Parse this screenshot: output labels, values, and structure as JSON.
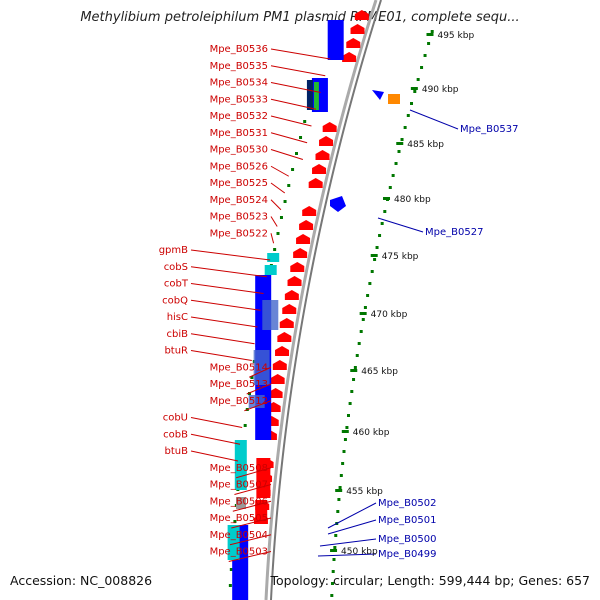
{
  "title": "Methylibium petroleiphilum PM1 plasmid RPME01, complete sequ...",
  "footer": {
    "accession": "Accession: NC_008826",
    "topology": "Topology: circular; Length: 599,444 bp; Genes: 657"
  },
  "colors": {
    "forward_gene": "#ff0000",
    "reverse_gene": "#0000ff",
    "cyan_feature": "#00cccc",
    "left_label": "#cc0000",
    "right_label": "#0000aa",
    "tick": "#007700",
    "backbone": "#999999"
  },
  "kbp_ticks": [
    "495 kbp",
    "490 kbp",
    "485 kbp",
    "480 kbp",
    "475 kbp",
    "470 kbp",
    "465 kbp",
    "460 kbp",
    "455 kbp",
    "450 kbp"
  ],
  "left_labels": [
    "Mpe_B0536",
    "Mpe_B0535",
    "Mpe_B0534",
    "Mpe_B0533",
    "Mpe_B0532",
    "Mpe_B0531",
    "Mpe_B0530",
    "Mpe_B0526",
    "Mpe_B0525",
    "Mpe_B0524",
    "Mpe_B0523",
    "Mpe_B0522",
    "gpmB",
    "cobS",
    "cobT",
    "cobQ",
    "hisC",
    "cbiB",
    "btuR",
    "Mpe_B0514",
    "Mpe_B0513",
    "Mpe_B0512",
    "cobU",
    "cobB",
    "btuB",
    "Mpe_B0508",
    "Mpe_B0507",
    "Mpe_B0506",
    "Mpe_B0505",
    "Mpe_B0504",
    "Mpe_B0503"
  ],
  "right_labels": [
    "Mpe_B0537",
    "Mpe_B0527",
    "Mpe_B0502",
    "Mpe_B0501",
    "Mpe_B0500",
    "Mpe_B0499"
  ]
}
